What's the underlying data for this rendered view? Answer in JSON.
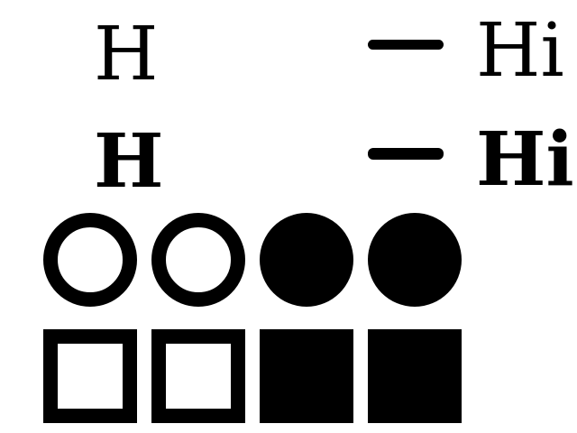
{
  "colors": {
    "background": "#ffffff",
    "foreground": "#000000"
  },
  "rows": {
    "regular": {
      "glyph": "H",
      "label": "Hi"
    },
    "bold": {
      "glyph": "H",
      "label": "Hi"
    }
  },
  "circles": [
    {
      "style": "outline"
    },
    {
      "style": "outline"
    },
    {
      "style": "filled"
    },
    {
      "style": "filled"
    }
  ],
  "squares": [
    {
      "style": "outline"
    },
    {
      "style": "outline"
    },
    {
      "style": "filled"
    },
    {
      "style": "filled"
    }
  ]
}
